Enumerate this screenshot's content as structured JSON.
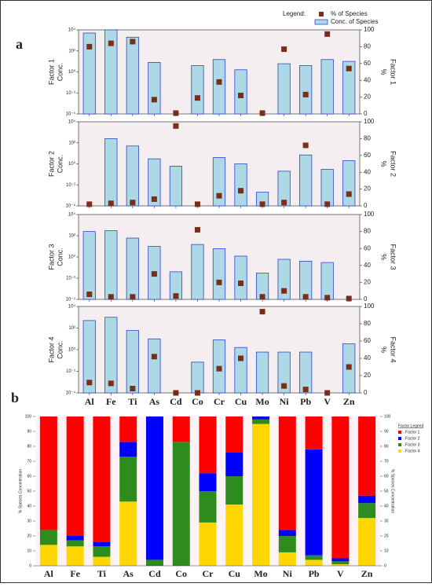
{
  "chart_data": [
    {
      "type": "combo",
      "label": "a",
      "legend_title": "Legend:",
      "ylabel": [
        "Factor 1",
        "Conc."
      ],
      "y2label": [
        "%",
        "Factor 1"
      ],
      "log": true,
      "ylim": [
        0.0001,
        10000
      ],
      "yticks": [
        {
          "value": 0.0001,
          "label": "10⁻⁴"
        },
        {
          "value": 0.01,
          "label": "10⁻²"
        },
        {
          "value": 1,
          "label": "10⁰"
        },
        {
          "value": 100,
          "label": "10²"
        },
        {
          "value": 10000,
          "label": "10⁴"
        }
      ],
      "y2lim": [
        0,
        100
      ],
      "y2ticks": [
        0,
        20,
        40,
        60,
        80,
        100
      ],
      "series": [
        {
          "name": "Conc. of Species",
          "color": "#add8e6",
          "values": [
            5000,
            10000,
            2000,
            8,
            null,
            4,
            15,
            1.6,
            null,
            6,
            4,
            15,
            10
          ]
        },
        {
          "name": "% of Species",
          "color": "#7a2e1a",
          "axis": "y2",
          "values": [
            80,
            84,
            86,
            17,
            1,
            19,
            38,
            22,
            1,
            77,
            23,
            95,
            54
          ]
        }
      ]
    },
    {
      "type": "combo",
      "ylabel": [
        "Factor 2",
        "Conc."
      ],
      "y2label": [
        "%",
        "Factor 2"
      ],
      "log": true,
      "ylim": [
        0.0001,
        10000
      ],
      "yticks": [
        {
          "value": 0.0001,
          "label": "10⁻⁴"
        },
        {
          "value": 0.01,
          "label": "10⁻²"
        },
        {
          "value": 1,
          "label": "10⁰"
        },
        {
          "value": 100,
          "label": "10²"
        },
        {
          "value": 10000,
          "label": "10⁴"
        }
      ],
      "y2lim": [
        0,
        100
      ],
      "y2ticks": [
        0,
        20,
        40,
        60,
        80,
        100
      ],
      "series": [
        {
          "color": "#add8e6",
          "values": [
            null,
            250,
            50,
            3,
            0.6,
            null,
            4,
            1,
            0.002,
            0.2,
            7,
            0.3,
            2
          ]
        },
        {
          "color": "#7a2e1a",
          "axis": "y2",
          "values": [
            2,
            3,
            4,
            8,
            95,
            2,
            12,
            18,
            2,
            4,
            72,
            2,
            14
          ]
        }
      ]
    },
    {
      "type": "combo",
      "ylabel": [
        "Factor 3",
        "Conc."
      ],
      "y2label": [
        "%",
        "Factor 3"
      ],
      "log": true,
      "ylim": [
        0.0001,
        10000
      ],
      "yticks": [
        {
          "value": 0.0001,
          "label": "10⁻⁴"
        },
        {
          "value": 0.01,
          "label": "10⁻²"
        },
        {
          "value": 1,
          "label": "10⁰"
        },
        {
          "value": 100,
          "label": "10²"
        },
        {
          "value": 10000,
          "label": "10⁴"
        }
      ],
      "y2lim": [
        0,
        100
      ],
      "y2ticks": [
        0,
        20,
        40,
        60,
        80,
        100
      ],
      "series": [
        {
          "color": "#add8e6",
          "values": [
            250,
            300,
            60,
            10,
            0.04,
            15,
            6,
            1.2,
            0.03,
            0.6,
            0.4,
            0.3,
            null
          ]
        },
        {
          "color": "#7a2e1a",
          "axis": "y2",
          "values": [
            6,
            3,
            3,
            30,
            4,
            82,
            20,
            19,
            3,
            10,
            3,
            2,
            1
          ]
        }
      ]
    },
    {
      "type": "combo",
      "ylabel": [
        "Factor 4",
        "Conc."
      ],
      "y2label": [
        "%",
        "Factor 4"
      ],
      "log": true,
      "ylim": [
        0.0001,
        10000
      ],
      "yticks": [
        {
          "value": 0.0001,
          "label": "10⁻⁴"
        },
        {
          "value": 0.01,
          "label": "10⁻²"
        },
        {
          "value": 1,
          "label": "10⁰"
        },
        {
          "value": 100,
          "label": "10²"
        },
        {
          "value": 10000,
          "label": "10⁴"
        }
      ],
      "y2lim": [
        0,
        100
      ],
      "y2ticks": [
        0,
        20,
        40,
        60,
        80,
        100
      ],
      "categories": [
        "Al",
        "Fe",
        "Ti",
        "As",
        "Cd",
        "Co",
        "Cr",
        "Cu",
        "Mo",
        "Ni",
        "Pb",
        "V",
        "Zn"
      ],
      "series": [
        {
          "color": "#add8e6",
          "values": [
            500,
            1000,
            60,
            10,
            null,
            0.07,
            8,
            1.6,
            0.6,
            0.6,
            0.6,
            null,
            3.5
          ]
        },
        {
          "color": "#7a2e1a",
          "axis": "y2",
          "values": [
            12,
            11,
            5,
            42,
            0,
            0,
            28,
            40,
            94,
            8,
            4,
            0,
            30
          ]
        }
      ]
    },
    {
      "type": "stacked_bar",
      "label": "b",
      "legend_title": "Factor Legend",
      "ylabel": "% Species Concentration",
      "y2label": "% Species Concentration",
      "ylim": [
        0,
        100
      ],
      "yticks": [
        0,
        10,
        20,
        30,
        40,
        50,
        60,
        70,
        80,
        90,
        100
      ],
      "categories": [
        "Al",
        "Fe",
        "Ti",
        "As",
        "Cd",
        "Co",
        "Cr",
        "Cu",
        "Mo",
        "Ni",
        "Pb",
        "V",
        "Zn"
      ],
      "series": [
        {
          "name": "- Factor 1",
          "color": "#ff0000",
          "values": [
            76,
            80,
            84,
            17,
            0,
            17,
            38,
            24,
            0,
            76,
            22,
            95,
            53
          ]
        },
        {
          "name": "- Factor 2",
          "color": "#0000ff",
          "values": [
            0,
            3,
            3,
            10,
            96,
            0,
            12,
            16,
            2,
            4,
            71,
            2,
            5
          ]
        },
        {
          "name": "- Factor 3",
          "color": "#2e8b1e",
          "values": [
            10,
            4,
            7,
            30,
            4,
            83,
            21,
            19,
            3,
            11,
            3,
            2,
            10
          ]
        },
        {
          "name": "- Factor 4",
          "color": "#ffd700",
          "values": [
            14,
            13,
            6,
            43,
            0,
            0,
            29,
            41,
            95,
            9,
            4,
            1,
            32
          ]
        }
      ]
    }
  ]
}
